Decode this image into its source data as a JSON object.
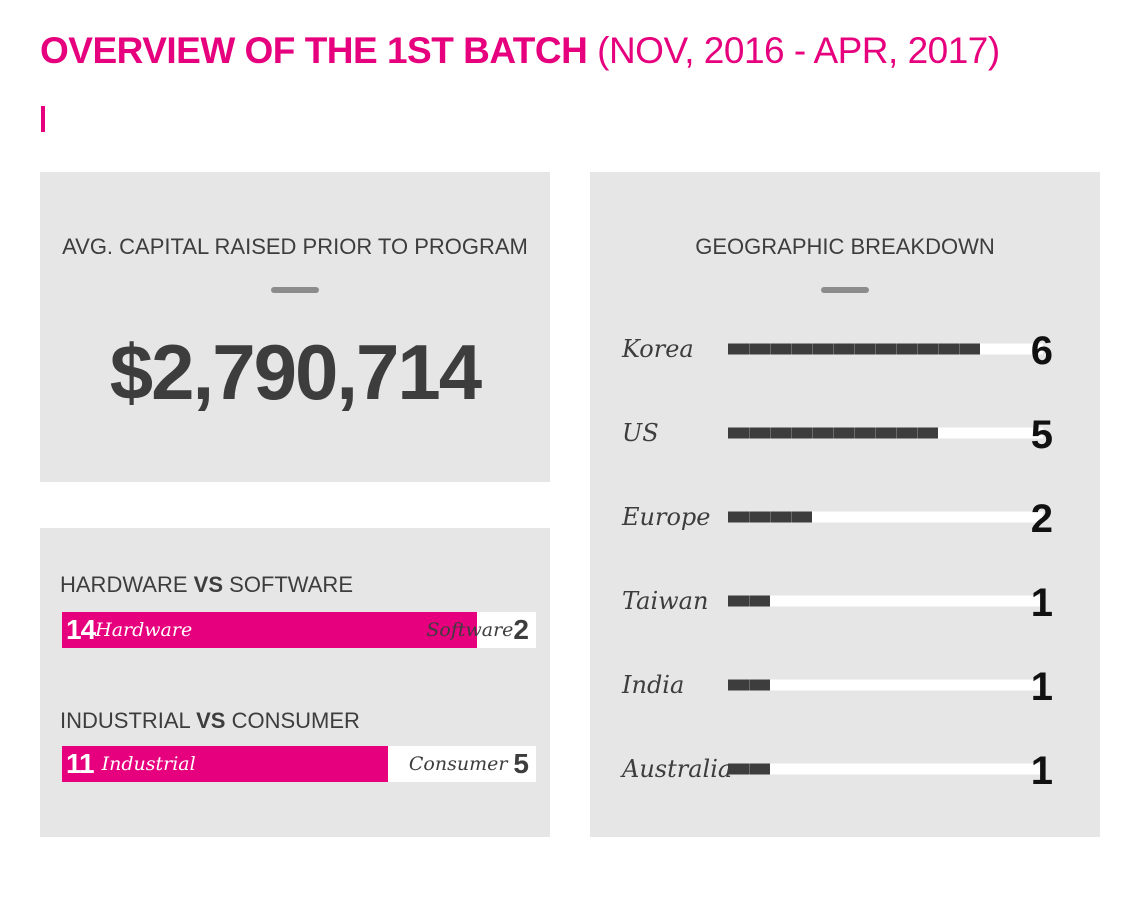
{
  "title": {
    "bold": "OVERVIEW OF THE 1ST BATCH",
    "light": "(NOV, 2016 - APR, 2017)"
  },
  "capital": {
    "heading": "AVG. CAPITAL RAISED PRIOR TO PROGRAM",
    "value": "$2,790,714"
  },
  "splits": [
    {
      "left_name": "HARDWARE",
      "vs": "VS",
      "right_name": "SOFTWARE",
      "left_label": "Hardware",
      "left_value": 14,
      "right_label": "Software",
      "right_value": 2
    },
    {
      "left_name": "INDUSTRIAL",
      "vs": "VS",
      "right_name": "CONSUMER",
      "left_label": "Industrial",
      "left_value": 11,
      "right_label": "Consumer",
      "right_value": 5
    }
  ],
  "chart_data": {
    "type": "bar",
    "title": "GEOGRAPHIC BREAKDOWN",
    "orientation": "horizontal",
    "categories": [
      "Korea",
      "US",
      "Europe",
      "Taiwan",
      "India",
      "Australia"
    ],
    "values": [
      6,
      5,
      2,
      1,
      1,
      1
    ],
    "xlim": [
      0,
      7.5
    ],
    "grid": false,
    "bar_color": "#3d3d3d",
    "track_color": "#ffffff"
  },
  "colors": {
    "accent": "#e6007e",
    "panel": "#e6e6e7",
    "text": "#3d3d3d"
  }
}
